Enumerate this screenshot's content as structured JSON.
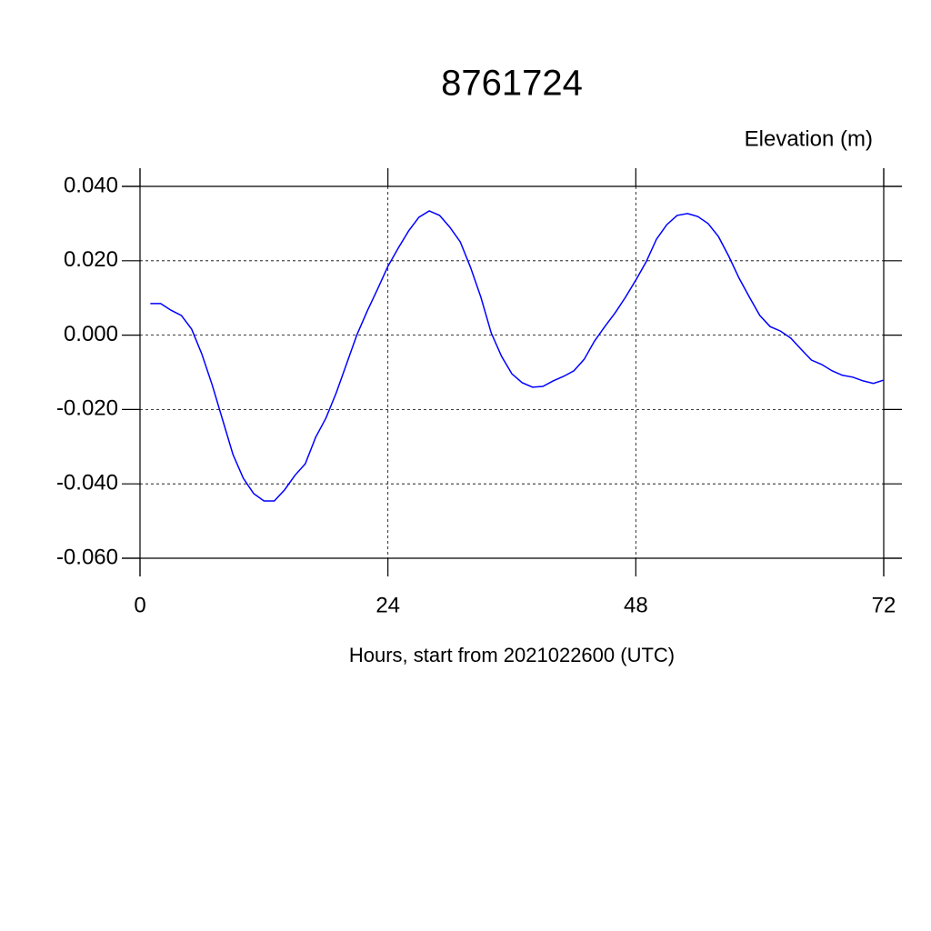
{
  "chart_data": {
    "type": "line",
    "title": "8761724",
    "ylabel": "Elevation (m)",
    "xlabel": "Hours, start from 2021022600 (UTC)",
    "x": [
      1,
      2,
      3,
      4,
      5,
      6,
      7,
      8,
      9,
      10,
      11,
      12,
      13,
      14,
      15,
      16,
      17,
      18,
      19,
      20,
      21,
      22,
      23,
      24,
      25,
      26,
      27,
      28,
      29,
      30,
      31,
      32,
      33,
      34,
      35,
      36,
      37,
      38,
      39,
      40,
      41,
      42,
      43,
      44,
      45,
      46,
      47,
      48,
      49,
      50,
      51,
      52,
      53,
      54,
      55,
      56,
      57,
      58,
      59,
      60,
      61,
      62,
      63,
      64,
      65,
      66,
      67,
      68,
      69,
      70,
      71,
      72
    ],
    "series": [
      {
        "name": "Elevation",
        "color": "#0000ff",
        "values": [
          0.0085,
          0.0085,
          0.0067,
          0.0053,
          0.0016,
          -0.0052,
          -0.0135,
          -0.0228,
          -0.0321,
          -0.0385,
          -0.0426,
          -0.0446,
          -0.0446,
          -0.0416,
          -0.0377,
          -0.0346,
          -0.0275,
          -0.0223,
          -0.0155,
          -0.0077,
          0.0001,
          0.0065,
          0.0124,
          0.0185,
          0.0234,
          0.028,
          0.0317,
          0.0334,
          0.0322,
          0.029,
          0.0251,
          0.0182,
          0.0102,
          0.0006,
          -0.0057,
          -0.0104,
          -0.0128,
          -0.014,
          -0.0138,
          -0.0123,
          -0.0111,
          -0.0096,
          -0.0065,
          -0.0016,
          0.0023,
          0.006,
          0.0102,
          0.0148,
          0.0197,
          0.0258,
          0.0297,
          0.0322,
          0.0327,
          0.0319,
          0.03,
          0.0265,
          0.0212,
          0.0153,
          0.0102,
          0.0053,
          0.0023,
          0.0011,
          -0.0008,
          -0.0038,
          -0.0067,
          -0.0079,
          -0.0096,
          -0.0108,
          -0.0113,
          -0.0123,
          -0.013,
          -0.0121
        ]
      }
    ],
    "xlim": [
      0,
      72
    ],
    "xticks": [
      0,
      24,
      48,
      72
    ],
    "ylim": [
      -0.06,
      0.04
    ],
    "yticks": [
      {
        "value": -0.06,
        "label": "-0.060"
      },
      {
        "value": -0.04,
        "label": "-0.040"
      },
      {
        "value": -0.02,
        "label": "-0.020"
      },
      {
        "value": 0,
        "label": "0.000"
      },
      {
        "value": 0.02,
        "label": "0.020"
      },
      {
        "value": 0.04,
        "label": "0.040"
      }
    ],
    "grid": true
  }
}
